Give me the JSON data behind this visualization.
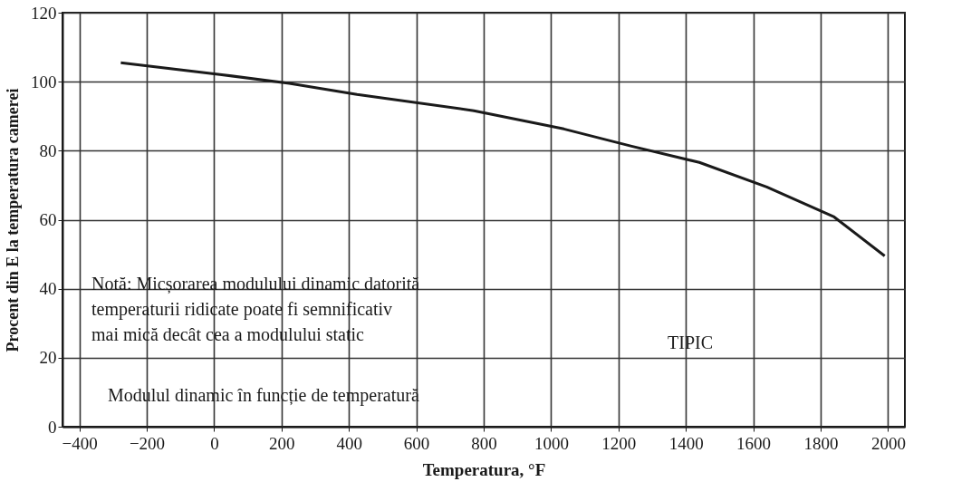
{
  "chart_data": {
    "type": "line",
    "xlabel": "Temperatura, °F",
    "ylabel": "Procent din E la temperatura camerei",
    "x": [
      -277,
      17,
      223,
      424,
      771,
      1038,
      1239,
      1440,
      1640,
      1840,
      1990
    ],
    "series": [
      {
        "color": "#1a1a1a",
        "values": [
          105.5,
          102.1,
          99.5,
          96.3,
          91.6,
          86.3,
          81.3,
          76.6,
          69.5,
          60.8,
          49.5
        ]
      }
    ],
    "xlim": [
      -450,
      2050
    ],
    "xticks": [
      -400,
      -200,
      0,
      200,
      400,
      600,
      800,
      1000,
      1200,
      1400,
      1600,
      1800,
      2000
    ],
    "ylim": [
      0,
      120
    ],
    "yticks": [
      0,
      20,
      40,
      60,
      80,
      100,
      120
    ],
    "grid": true,
    "marker": "none",
    "line_style": "solid",
    "annotations": [
      "Notă: Micșorarea modulului dinamic datorită\n         temperaturii ridicate poate fi semnificativ\n         mai mică decât cea a modulului static",
      "TIPIC",
      "Modulul  dinamic în funcție de temperatură"
    ]
  }
}
